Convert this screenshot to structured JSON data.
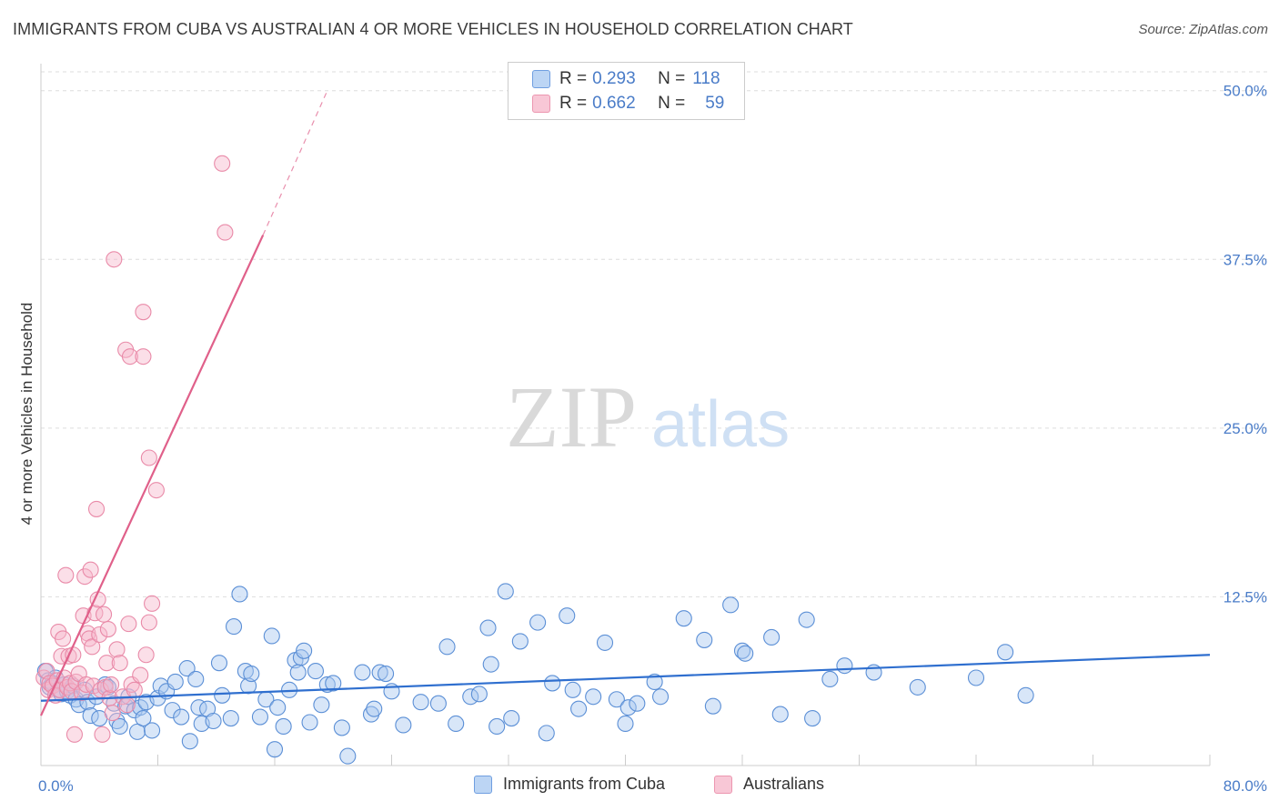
{
  "title": "IMMIGRANTS FROM CUBA VS AUSTRALIAN 4 OR MORE VEHICLES IN HOUSEHOLD CORRELATION CHART",
  "source": "Source: ZipAtlas.com",
  "watermark": {
    "zip": "ZIP",
    "atlas": "atlas"
  },
  "legend": {
    "rows": [
      {
        "r_label": "R =",
        "r_value": "0.293",
        "n_label": "N =",
        "n_value": "118"
      },
      {
        "r_label": "R =",
        "r_value": "0.662",
        "n_label": "N =",
        "n_value": "59"
      }
    ]
  },
  "bottom_legend": [
    "Immigrants from Cuba",
    "Australians"
  ],
  "colors": {
    "blue_fill": "#a9c8f0",
    "blue_stroke": "#5b8fd6",
    "blue_line": "#2f6fcf",
    "pink_fill": "#f6b8cb",
    "pink_stroke": "#e98aa8",
    "pink_line": "#e0608a",
    "tick_text": "#4a7cc8",
    "grid": "#dddddd"
  },
  "chart_data": {
    "type": "scatter",
    "title": "IMMIGRANTS FROM CUBA VS AUSTRALIAN 4 OR MORE VEHICLES IN HOUSEHOLD CORRELATION CHART",
    "xlabel": "",
    "ylabel": "4 or more Vehicles in Household",
    "xlim": [
      0,
      80
    ],
    "ylim": [
      0,
      52
    ],
    "y_ticks": [
      12.5,
      25.0,
      37.5,
      50.0
    ],
    "y_tick_labels": [
      "12.5%",
      "25.0%",
      "37.5%",
      "50.0%"
    ],
    "x_tick_labels": [
      "0.0%",
      "80.0%"
    ],
    "series": [
      {
        "name": "Immigrants from Cuba",
        "color": "blue",
        "R": 0.293,
        "N": 118,
        "trend": {
          "x": [
            0,
            80
          ],
          "y": [
            4.8,
            8.2
          ]
        },
        "points": [
          [
            0.3,
            7.0
          ],
          [
            0.5,
            6.3
          ],
          [
            0.6,
            5.8
          ],
          [
            0.8,
            6.1
          ],
          [
            1.0,
            6.5
          ],
          [
            1.2,
            5.6
          ],
          [
            1.4,
            5.3
          ],
          [
            1.6,
            6.0
          ],
          [
            1.8,
            5.5
          ],
          [
            2.0,
            5.2
          ],
          [
            2.2,
            5.9
          ],
          [
            2.4,
            4.9
          ],
          [
            2.6,
            4.5
          ],
          [
            3.0,
            5.6
          ],
          [
            3.2,
            4.7
          ],
          [
            3.4,
            3.7
          ],
          [
            3.8,
            5.1
          ],
          [
            4.0,
            3.5
          ],
          [
            4.4,
            6.0
          ],
          [
            4.6,
            5.8
          ],
          [
            5.0,
            4.6
          ],
          [
            5.2,
            3.3
          ],
          [
            5.4,
            2.9
          ],
          [
            5.8,
            4.4
          ],
          [
            6.0,
            5.1
          ],
          [
            6.4,
            4.1
          ],
          [
            6.6,
            2.5
          ],
          [
            6.8,
            4.3
          ],
          [
            7.0,
            3.5
          ],
          [
            7.2,
            4.7
          ],
          [
            7.6,
            2.6
          ],
          [
            8.0,
            5.0
          ],
          [
            8.2,
            5.9
          ],
          [
            8.6,
            5.5
          ],
          [
            9.0,
            4.1
          ],
          [
            9.2,
            6.2
          ],
          [
            9.6,
            3.6
          ],
          [
            10.0,
            7.2
          ],
          [
            10.2,
            1.8
          ],
          [
            10.6,
            6.4
          ],
          [
            10.8,
            4.3
          ],
          [
            11.0,
            3.1
          ],
          [
            11.4,
            4.2
          ],
          [
            11.8,
            3.3
          ],
          [
            12.2,
            7.6
          ],
          [
            12.4,
            5.2
          ],
          [
            13.0,
            3.5
          ],
          [
            13.2,
            10.3
          ],
          [
            13.6,
            12.7
          ],
          [
            14.0,
            7.0
          ],
          [
            14.2,
            5.9
          ],
          [
            14.4,
            6.8
          ],
          [
            15.0,
            3.6
          ],
          [
            15.4,
            4.9
          ],
          [
            15.8,
            9.6
          ],
          [
            16.0,
            1.2
          ],
          [
            16.2,
            4.3
          ],
          [
            16.6,
            2.9
          ],
          [
            17.0,
            5.6
          ],
          [
            17.4,
            7.8
          ],
          [
            17.6,
            6.9
          ],
          [
            17.8,
            8.0
          ],
          [
            18.0,
            8.5
          ],
          [
            18.4,
            3.2
          ],
          [
            18.8,
            7.0
          ],
          [
            19.2,
            4.5
          ],
          [
            19.6,
            6.0
          ],
          [
            20.0,
            6.1
          ],
          [
            20.6,
            2.8
          ],
          [
            21.0,
            0.7
          ],
          [
            22.0,
            6.9
          ],
          [
            22.6,
            3.8
          ],
          [
            22.8,
            4.2
          ],
          [
            23.2,
            6.9
          ],
          [
            23.6,
            6.8
          ],
          [
            24.0,
            5.5
          ],
          [
            24.8,
            3.0
          ],
          [
            26.0,
            4.7
          ],
          [
            27.2,
            4.6
          ],
          [
            27.8,
            8.8
          ],
          [
            28.4,
            3.1
          ],
          [
            29.4,
            5.1
          ],
          [
            30.0,
            5.3
          ],
          [
            30.6,
            10.2
          ],
          [
            30.8,
            7.5
          ],
          [
            31.2,
            2.9
          ],
          [
            32.2,
            3.5
          ],
          [
            32.8,
            9.2
          ],
          [
            34.0,
            10.6
          ],
          [
            34.6,
            2.4
          ],
          [
            35.0,
            6.1
          ],
          [
            36.0,
            11.1
          ],
          [
            36.4,
            5.6
          ],
          [
            36.8,
            4.2
          ],
          [
            37.8,
            5.1
          ],
          [
            38.6,
            9.1
          ],
          [
            39.4,
            4.9
          ],
          [
            40.0,
            3.1
          ],
          [
            40.2,
            4.3
          ],
          [
            40.8,
            4.6
          ],
          [
            42.0,
            6.2
          ],
          [
            42.4,
            5.1
          ],
          [
            44.0,
            10.9
          ],
          [
            45.4,
            9.3
          ],
          [
            46.0,
            4.4
          ],
          [
            47.2,
            11.9
          ],
          [
            48.0,
            8.5
          ],
          [
            48.2,
            8.3
          ],
          [
            50.0,
            9.5
          ],
          [
            50.6,
            3.8
          ],
          [
            52.4,
            10.8
          ],
          [
            52.8,
            3.5
          ],
          [
            54.0,
            6.4
          ],
          [
            55.0,
            7.4
          ],
          [
            57.0,
            6.9
          ],
          [
            60.0,
            5.8
          ],
          [
            64.0,
            6.5
          ],
          [
            66.0,
            8.4
          ],
          [
            67.4,
            5.2
          ],
          [
            31.8,
            12.9
          ]
        ]
      },
      {
        "name": "Australians",
        "color": "pink",
        "R": 0.662,
        "N": 59,
        "trend": {
          "x": [
            0,
            15.2
          ],
          "y": [
            3.7,
            39.3
          ]
        },
        "trend_extension": {
          "x": [
            15.2,
            19.6
          ],
          "y": [
            39.3,
            50.0
          ]
        },
        "points": [
          [
            0.2,
            6.5
          ],
          [
            0.4,
            7.0
          ],
          [
            0.5,
            5.6
          ],
          [
            0.6,
            6.1
          ],
          [
            0.8,
            5.9
          ],
          [
            1.0,
            5.2
          ],
          [
            1.1,
            6.3
          ],
          [
            1.2,
            9.9
          ],
          [
            1.3,
            5.6
          ],
          [
            1.4,
            8.1
          ],
          [
            1.5,
            9.4
          ],
          [
            1.6,
            6.5
          ],
          [
            1.7,
            14.1
          ],
          [
            1.8,
            5.8
          ],
          [
            1.9,
            8.1
          ],
          [
            2.0,
            6.1
          ],
          [
            2.1,
            5.5
          ],
          [
            2.2,
            8.2
          ],
          [
            2.3,
            2.3
          ],
          [
            2.4,
            6.2
          ],
          [
            2.6,
            6.8
          ],
          [
            2.8,
            5.4
          ],
          [
            2.9,
            11.1
          ],
          [
            3.0,
            14.0
          ],
          [
            3.1,
            6.0
          ],
          [
            3.2,
            9.8
          ],
          [
            3.3,
            9.4
          ],
          [
            3.4,
            14.5
          ],
          [
            3.5,
            8.8
          ],
          [
            3.6,
            5.9
          ],
          [
            3.7,
            11.3
          ],
          [
            3.8,
            19.0
          ],
          [
            3.9,
            12.3
          ],
          [
            4.0,
            9.7
          ],
          [
            4.1,
            5.6
          ],
          [
            4.2,
            2.3
          ],
          [
            4.3,
            11.2
          ],
          [
            4.4,
            5.8
          ],
          [
            4.5,
            7.6
          ],
          [
            4.6,
            10.1
          ],
          [
            4.7,
            5.0
          ],
          [
            4.8,
            6.0
          ],
          [
            4.9,
            3.9
          ],
          [
            5.0,
            37.5
          ],
          [
            5.2,
            8.6
          ],
          [
            5.4,
            7.6
          ],
          [
            5.6,
            5.1
          ],
          [
            5.8,
            30.8
          ],
          [
            5.9,
            4.5
          ],
          [
            6.0,
            10.5
          ],
          [
            6.2,
            6.0
          ],
          [
            6.4,
            5.6
          ],
          [
            6.8,
            6.7
          ],
          [
            7.0,
            33.6
          ],
          [
            7.2,
            8.2
          ],
          [
            7.4,
            10.6
          ],
          [
            7.6,
            12.0
          ],
          [
            12.4,
            44.6
          ],
          [
            12.6,
            39.5
          ],
          [
            7.4,
            22.8
          ],
          [
            6.1,
            30.3
          ],
          [
            7.0,
            30.3
          ],
          [
            7.9,
            20.4
          ]
        ]
      }
    ]
  }
}
